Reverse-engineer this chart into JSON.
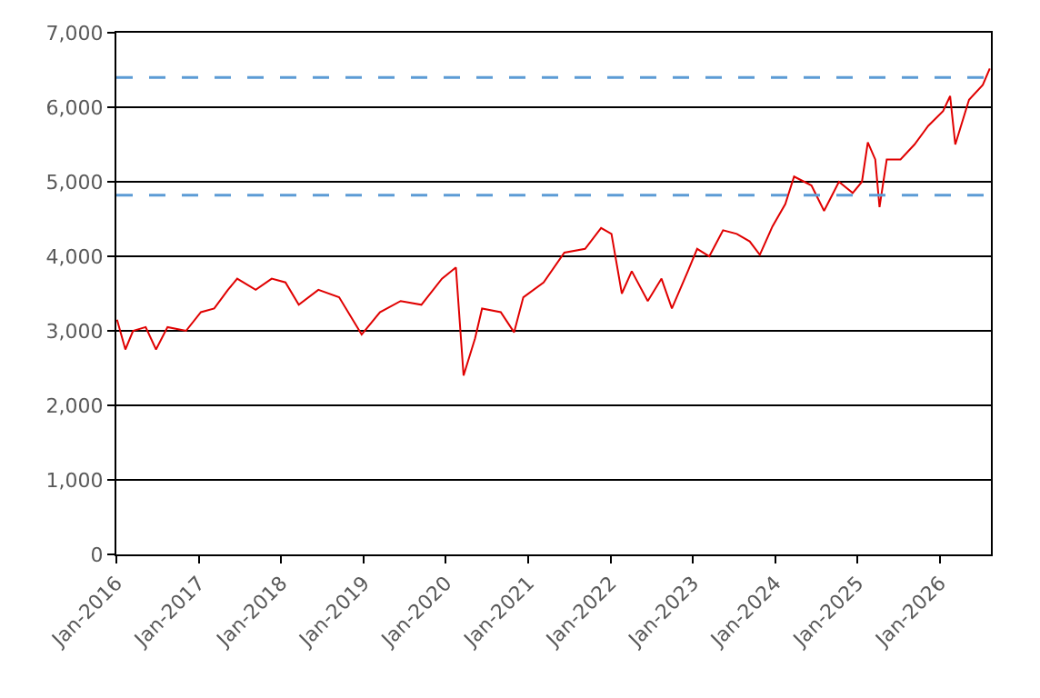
{
  "chart_data": {
    "type": "line",
    "x": [
      "2016-01-04",
      "2016-02-10",
      "2016-03-15",
      "2016-05-10",
      "2016-06-25",
      "2016-08-15",
      "2016-11-05",
      "2017-01-10",
      "2017-03-10",
      "2017-05-10",
      "2017-06-20",
      "2017-09-10",
      "2017-11-20",
      "2018-01-20",
      "2018-03-20",
      "2018-06-15",
      "2018-09-15",
      "2018-12-24",
      "2019-03-15",
      "2019-06-15",
      "2019-09-15",
      "2019-12-15",
      "2020-02-15",
      "2020-03-20",
      "2020-05-10",
      "2020-06-10",
      "2020-09-01",
      "2020-10-30",
      "2020-12-10",
      "2021-03-10",
      "2021-06-10",
      "2021-09-10",
      "2021-11-20",
      "2022-01-05",
      "2022-02-20",
      "2022-04-05",
      "2022-06-15",
      "2022-08-15",
      "2022-09-30",
      "2022-12-10",
      "2023-01-20",
      "2023-03-15",
      "2023-05-15",
      "2023-07-15",
      "2023-09-10",
      "2023-10-25",
      "2023-12-20",
      "2024-02-15",
      "2024-03-25",
      "2024-06-10",
      "2024-08-05",
      "2024-10-10",
      "2024-12-10",
      "2025-01-20",
      "2025-02-15",
      "2025-03-20",
      "2025-04-08",
      "2025-05-10",
      "2025-07-10",
      "2025-09-10",
      "2025-11-10",
      "2026-01-15",
      "2026-02-15",
      "2026-03-10",
      "2026-05-10",
      "2026-07-10",
      "2026-08-10"
    ],
    "series": [
      {
        "color": "#e00000",
        "values": [
          3150,
          2750,
          3000,
          3050,
          2750,
          3050,
          3000,
          3250,
          3300,
          3550,
          3700,
          3550,
          3700,
          3650,
          3350,
          3550,
          3450,
          2950,
          3250,
          3400,
          3350,
          3700,
          3850,
          2400,
          2900,
          3300,
          3250,
          2980,
          3450,
          3650,
          4050,
          4100,
          4380,
          4300,
          3500,
          3800,
          3400,
          3700,
          3300,
          3800,
          4100,
          4000,
          4350,
          4300,
          4200,
          4020,
          4400,
          4700,
          5070,
          4950,
          4610,
          5000,
          4850,
          5000,
          5530,
          5300,
          4660,
          5300,
          5300,
          5500,
          5750,
          5950,
          6150,
          5500,
          6100,
          6300,
          6520
        ]
      }
    ],
    "xlim": [
      "2016-01-01",
      "2026-08-15"
    ],
    "xticks": [
      {
        "value": "2016-01-01",
        "label": "Jan-2016"
      },
      {
        "value": "2017-01-01",
        "label": "Jan-2017"
      },
      {
        "value": "2018-01-01",
        "label": "Jan-2018"
      },
      {
        "value": "2019-01-01",
        "label": "Jan-2019"
      },
      {
        "value": "2020-01-01",
        "label": "Jan-2020"
      },
      {
        "value": "2021-01-01",
        "label": "Jan-2021"
      },
      {
        "value": "2022-01-01",
        "label": "Jan-2022"
      },
      {
        "value": "2023-01-01",
        "label": "Jan-2023"
      },
      {
        "value": "2024-01-01",
        "label": "Jan-2024"
      },
      {
        "value": "2025-01-01",
        "label": "Jan-2025"
      },
      {
        "value": "2026-01-01",
        "label": "Jan-2026"
      }
    ],
    "ylim": [
      0,
      7000
    ],
    "yticks": [
      0,
      {
        "value": 1000,
        "label": "1,000"
      },
      {
        "value": 2000,
        "label": "2,000"
      },
      {
        "value": 3000,
        "label": "3,000"
      },
      {
        "value": 4000,
        "label": "4,000"
      },
      {
        "value": 5000,
        "label": "5,000"
      },
      {
        "value": 6000,
        "label": "6,000"
      },
      {
        "value": 7000,
        "label": "7,000"
      }
    ],
    "ref_lines": [
      {
        "axis": "y",
        "value": 6400,
        "color": "#5b9bd5",
        "line_style": "dashed"
      },
      {
        "axis": "y",
        "value": 4820,
        "color": "#5b9bd5",
        "line_style": "dashed"
      }
    ],
    "grid": "y",
    "marker": "none",
    "line_style": "solid"
  }
}
